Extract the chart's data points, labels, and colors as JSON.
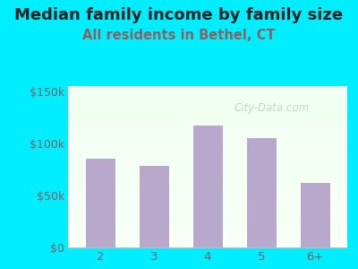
{
  "title": "Median family income by family size",
  "subtitle": "All residents in Bethel, CT",
  "categories": [
    "2",
    "3",
    "4",
    "5",
    "6+"
  ],
  "values": [
    85000,
    78000,
    117000,
    105000,
    62000
  ],
  "bar_color": "#b8a8cc",
  "background_outer": "#00eeff",
  "yticks": [
    0,
    50000,
    100000,
    150000
  ],
  "ytick_labels": [
    "$0",
    "$50k",
    "$100k",
    "$150k"
  ],
  "ylim": [
    0,
    155000
  ],
  "title_fontsize": 13,
  "subtitle_fontsize": 10.5,
  "title_color": "#222222",
  "subtitle_color": "#8B6060",
  "tick_color": "#7a6060",
  "watermark": "City-Data.com"
}
